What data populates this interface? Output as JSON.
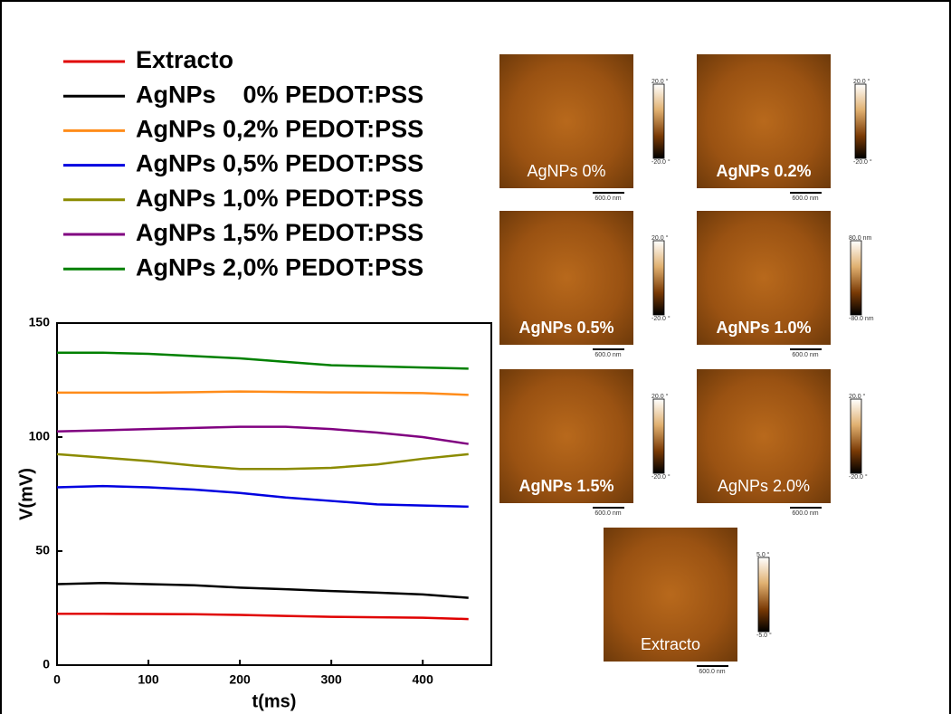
{
  "chart_data": {
    "type": "line",
    "x_label": "t(ms)",
    "y_label": "V(mV)",
    "x": [
      0,
      50,
      100,
      150,
      200,
      250,
      300,
      350,
      400,
      450
    ],
    "xlim": [
      0,
      475
    ],
    "xticks": [
      0,
      100,
      200,
      300,
      400
    ],
    "ylim": [
      0,
      150
    ],
    "yticks": [
      0,
      50,
      100,
      150
    ],
    "series": [
      {
        "name": "Extracto",
        "color": "#e00000",
        "values": [
          22.5,
          22.5,
          22.4,
          22.3,
          22,
          21.6,
          21.2,
          21,
          20.8,
          20.2
        ]
      },
      {
        "name": "AgNPs    0% PEDOT:PSS",
        "color": "#000000",
        "values": [
          35.5,
          36,
          35.5,
          35,
          34,
          33.3,
          32.5,
          31.8,
          31,
          29.5
        ]
      },
      {
        "name": "AgNPs 0,2% PEDOT:PSS",
        "color": "#ff8c1a",
        "values": [
          119.5,
          119.5,
          119.5,
          119.7,
          120,
          119.8,
          119.6,
          119.5,
          119.3,
          118.5
        ]
      },
      {
        "name": "AgNPs 0,5% PEDOT:PSS",
        "color": "#0000e0",
        "values": [
          78,
          78.5,
          78,
          77,
          75.5,
          73.5,
          72,
          70.5,
          70,
          69.5
        ]
      },
      {
        "name": "AgNPs 1,0% PEDOT:PSS",
        "color": "#8b8b00",
        "values": [
          92.5,
          91,
          89.5,
          87.5,
          86,
          86,
          86.5,
          88,
          90.5,
          92.5
        ]
      },
      {
        "name": "AgNPs 1,5% PEDOT:PSS",
        "color": "#800080",
        "values": [
          102.5,
          103,
          103.5,
          104,
          104.5,
          104.5,
          103.5,
          102,
          100,
          97
        ]
      },
      {
        "name": "AgNPs 2,0% PEDOT:PSS",
        "color": "#008000",
        "values": [
          137,
          137,
          136.5,
          135.5,
          134.5,
          133,
          131.5,
          131,
          130.5,
          130
        ]
      }
    ]
  },
  "images": [
    {
      "label": "AgNPs 0%",
      "scale_max": "20.0 °",
      "scale_min": "-20.0 °",
      "scale_bar": "600.0 nm"
    },
    {
      "label": "AgNPs 0.2%",
      "scale_max": "20.0 °",
      "scale_min": "-20.0 °",
      "scale_bar": "600.0 nm"
    },
    {
      "label": "AgNPs 0.5%",
      "scale_max": "20.0 °",
      "scale_min": "-20.0 °",
      "scale_bar": "600.0 nm"
    },
    {
      "label": "AgNPs 1.0%",
      "scale_max": "80.0 nm",
      "scale_min": "-80.0 nm",
      "scale_bar": "600.0 nm"
    },
    {
      "label": "AgNPs 1.5%",
      "scale_max": "20.0 °",
      "scale_min": "-20.0 °",
      "scale_bar": "600.0 nm"
    },
    {
      "label": "AgNPs 2.0%",
      "scale_max": "20.0 °",
      "scale_min": "-20.0 °",
      "scale_bar": "600.0 nm"
    },
    {
      "label": "Extracto",
      "scale_max": "5.0 °",
      "scale_min": "-5.0 °",
      "scale_bar": "600.0 nm"
    }
  ]
}
